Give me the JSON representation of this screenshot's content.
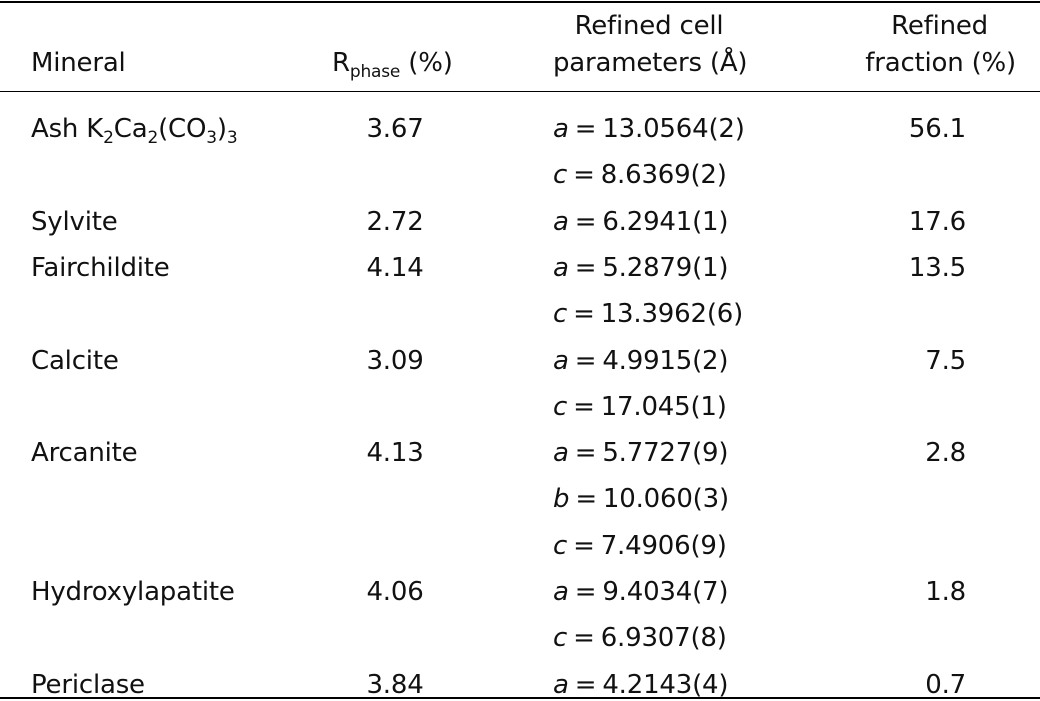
{
  "header": {
    "mineral": "Mineral",
    "r_phase_main": "R",
    "r_phase_sub": "phase",
    "r_phase_unit": " (%)",
    "params_line1": "Refined cell",
    "params_line2": "parameters (Å)",
    "fraction_line1": "Refined",
    "fraction_line2": "fraction (%)"
  },
  "rows": [
    {
      "mineral": "Ash K2Ca2(CO3)3",
      "r": "3.67",
      "params": [
        {
          "axis": "a",
          "value": "13.0564(2)"
        },
        {
          "axis": "c",
          "value": "8.6369(2)"
        }
      ],
      "fraction": "56.1"
    },
    {
      "mineral": "Sylvite",
      "r": "2.72",
      "params": [
        {
          "axis": "a",
          "value": "6.2941(1)"
        }
      ],
      "fraction": "17.6"
    },
    {
      "mineral": "Fairchildite",
      "r": "4.14",
      "params": [
        {
          "axis": "a",
          "value": "5.2879(1)"
        },
        {
          "axis": "c",
          "value": "13.3962(6)"
        }
      ],
      "fraction": "13.5"
    },
    {
      "mineral": "Calcite",
      "r": "3.09",
      "params": [
        {
          "axis": "a",
          "value": "4.9915(2)"
        },
        {
          "axis": "c",
          "value": "17.045(1)"
        }
      ],
      "fraction": "7.5"
    },
    {
      "mineral": "Arcanite",
      "r": "4.13",
      "params": [
        {
          "axis": "a",
          "value": "5.7727(9)"
        },
        {
          "axis": "b",
          "value": "10.060(3)"
        },
        {
          "axis": "c",
          "value": "7.4906(9)"
        }
      ],
      "fraction": "2.8"
    },
    {
      "mineral": "Hydroxylapatite",
      "r": "4.06",
      "params": [
        {
          "axis": "a",
          "value": "9.4034(7)"
        },
        {
          "axis": "c",
          "value": "6.9307(8)"
        }
      ],
      "fraction": "1.8"
    },
    {
      "mineral": "Periclase",
      "r": "3.84",
      "params": [
        {
          "axis": "a",
          "value": "4.2143(4)"
        }
      ],
      "fraction": "0.7"
    }
  ],
  "ash_formula": {
    "prefix": "Ash K",
    "s1": "2",
    "p2": "Ca",
    "s2": "2",
    "p3": "(CO",
    "s3": "3",
    "p4": ")",
    "s4": "3"
  }
}
